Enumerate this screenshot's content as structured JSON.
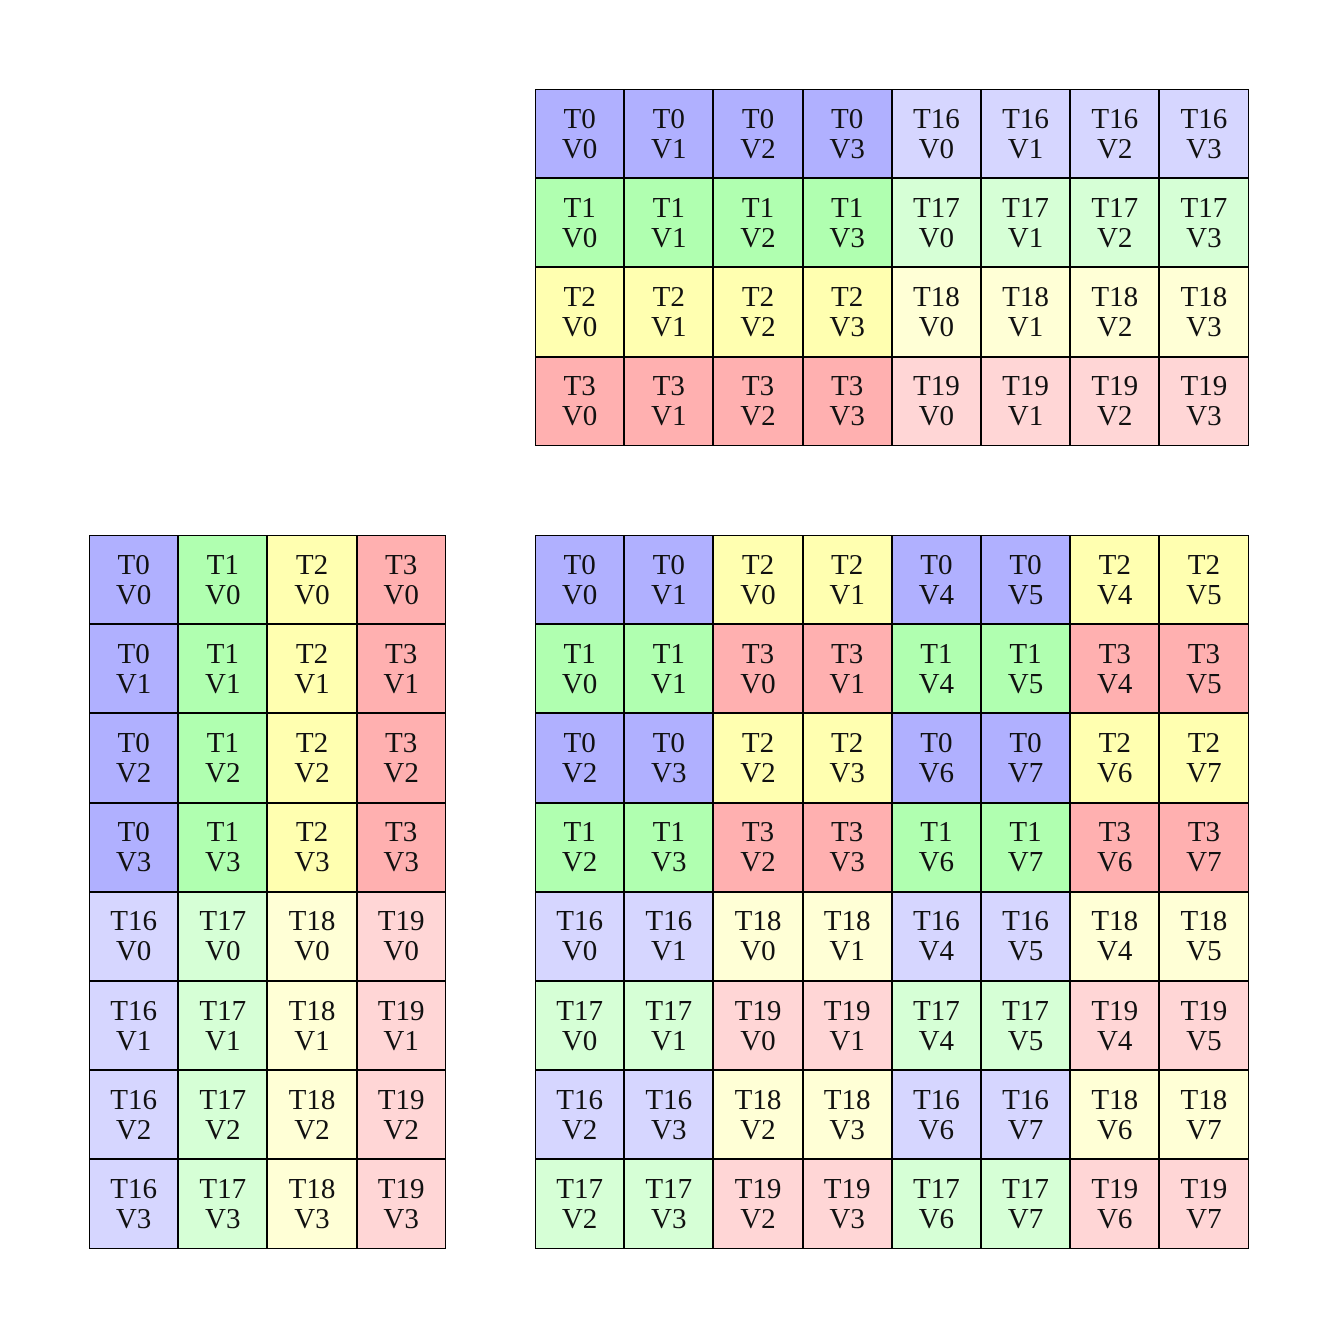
{
  "colors": {
    "T0": "#b0b0ff",
    "T1": "#b0ffb0",
    "T2": "#ffffb0",
    "T3": "#ffb0b0",
    "T16": "#d6d6ff",
    "T17": "#d6ffd6",
    "T18": "#ffffd6",
    "T19": "#ffd6d6"
  },
  "grids": {
    "a": [
      [
        "T0 V0",
        "T0 V1",
        "T0 V2",
        "T0 V3",
        "T16 V0",
        "T16 V1",
        "T16 V2",
        "T16 V3"
      ],
      [
        "T1 V0",
        "T1 V1",
        "T1 V2",
        "T1 V3",
        "T17 V0",
        "T17 V1",
        "T17 V2",
        "T17 V3"
      ],
      [
        "T2 V0",
        "T2 V1",
        "T2 V2",
        "T2 V3",
        "T18 V0",
        "T18 V1",
        "T18 V2",
        "T18 V3"
      ],
      [
        "T3 V0",
        "T3 V1",
        "T3 V2",
        "T3 V3",
        "T19 V0",
        "T19 V1",
        "T19 V2",
        "T19 V3"
      ]
    ],
    "b": [
      [
        "T0 V0",
        "T1 V0",
        "T2 V0",
        "T3 V0"
      ],
      [
        "T0 V1",
        "T1 V1",
        "T2 V1",
        "T3 V1"
      ],
      [
        "T0 V2",
        "T1 V2",
        "T2 V2",
        "T3 V2"
      ],
      [
        "T0 V3",
        "T1 V3",
        "T2 V3",
        "T3 V3"
      ],
      [
        "T16 V0",
        "T17 V0",
        "T18 V0",
        "T19 V0"
      ],
      [
        "T16 V1",
        "T17 V1",
        "T18 V1",
        "T19 V1"
      ],
      [
        "T16 V2",
        "T17 V2",
        "T18 V2",
        "T19 V2"
      ],
      [
        "T16 V3",
        "T17 V3",
        "T18 V3",
        "T19 V3"
      ]
    ],
    "c": [
      [
        "T0 V0",
        "T0 V1",
        "T2 V0",
        "T2 V1",
        "T0 V4",
        "T0 V5",
        "T2 V4",
        "T2 V5"
      ],
      [
        "T1 V0",
        "T1 V1",
        "T3 V0",
        "T3 V1",
        "T1 V4",
        "T1 V5",
        "T3 V4",
        "T3 V5"
      ],
      [
        "T0 V2",
        "T0 V3",
        "T2 V2",
        "T2 V3",
        "T0 V6",
        "T0 V7",
        "T2 V6",
        "T2 V7"
      ],
      [
        "T1 V2",
        "T1 V3",
        "T3 V2",
        "T3 V3",
        "T1 V6",
        "T1 V7",
        "T3 V6",
        "T3 V7"
      ],
      [
        "T16 V0",
        "T16 V1",
        "T18 V0",
        "T18 V1",
        "T16 V4",
        "T16 V5",
        "T18 V4",
        "T18 V5"
      ],
      [
        "T17 V0",
        "T17 V1",
        "T19 V0",
        "T19 V1",
        "T17 V4",
        "T17 V5",
        "T19 V4",
        "T19 V5"
      ],
      [
        "T16 V2",
        "T16 V3",
        "T18 V2",
        "T18 V3",
        "T16 V6",
        "T16 V7",
        "T18 V6",
        "T18 V7"
      ],
      [
        "T17 V2",
        "T17 V3",
        "T19 V2",
        "T19 V3",
        "T17 V6",
        "T17 V7",
        "T19 V6",
        "T19 V7"
      ]
    ]
  }
}
